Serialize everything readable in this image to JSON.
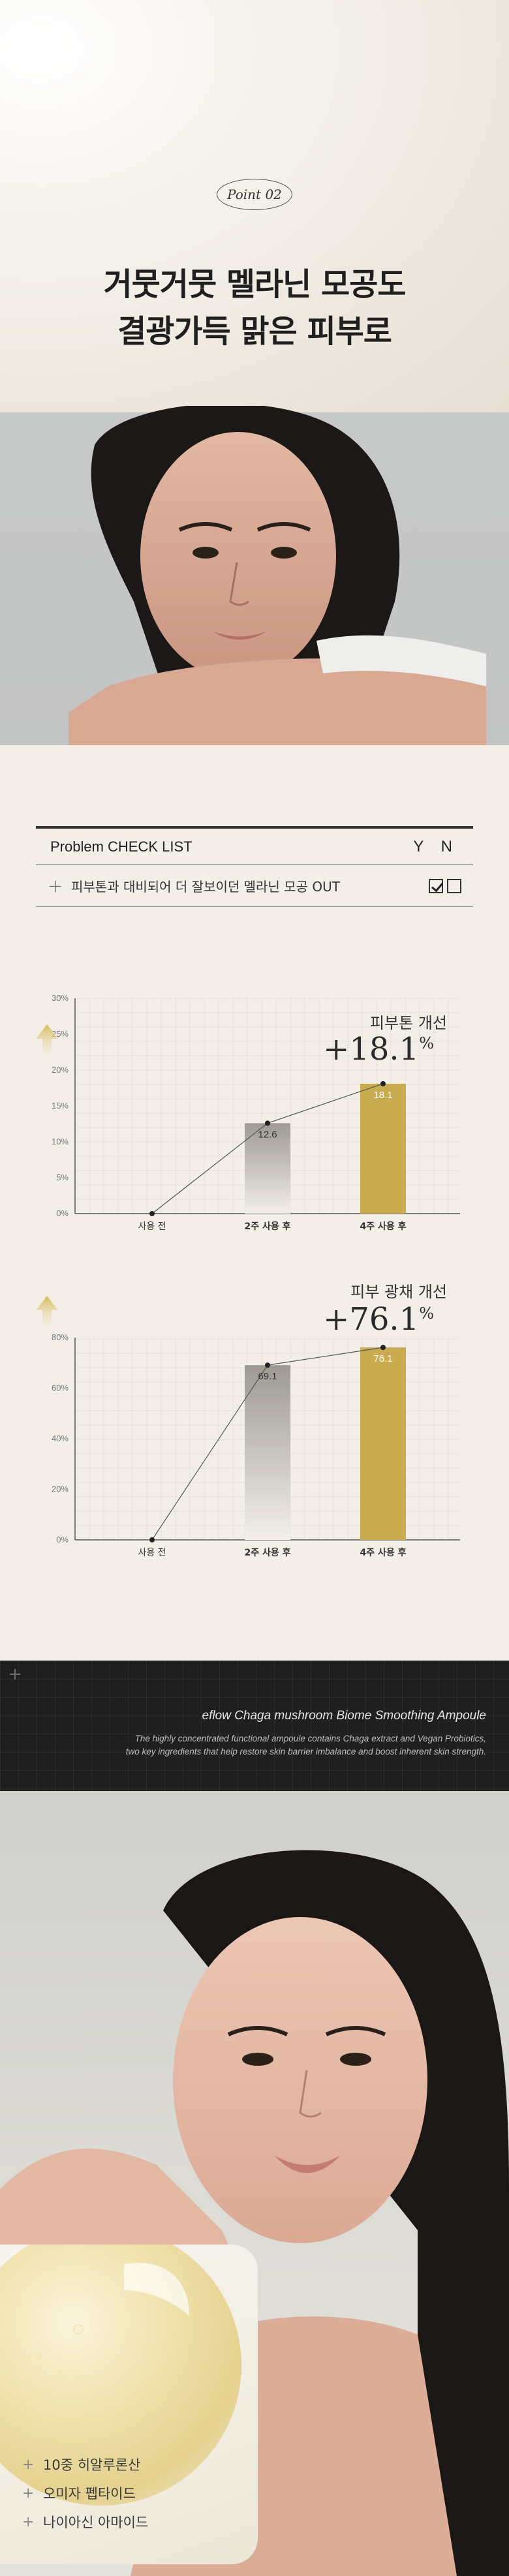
{
  "hero": {
    "badge": "Point 02",
    "title_line1": "거뭇거뭇 멜라닌 모공도",
    "title_line2": "결광가득 맑은 피부로"
  },
  "checklist": {
    "title": "Problem CHECK LIST",
    "yn": "Y N",
    "rows": [
      {
        "text": "피부톤과 대비되어 더 잘보이던 멜라닌 모공 OUT",
        "y_checked": true,
        "n_checked": false
      }
    ]
  },
  "charts": [
    {
      "label": "피부톤 개선",
      "pct": "+18.1",
      "pct_unit": "%",
      "chart_data": {
        "type": "bar",
        "categories": [
          "사용 전",
          "2주 사용 후",
          "4주 사용 후"
        ],
        "values": [
          0,
          12.6,
          18.1
        ],
        "value_labels": [
          "",
          "12.6",
          "18.1"
        ],
        "yticks": [
          "0%",
          "5%",
          "10%",
          "15%",
          "20%",
          "25%",
          "30%"
        ],
        "ylim": [
          0,
          30
        ],
        "grid": true
      }
    },
    {
      "label": "피부 광채 개선",
      "pct": "+76.1",
      "pct_unit": "%",
      "chart_data": {
        "type": "bar",
        "categories": [
          "사용 전",
          "2주 사용 후",
          "4주 사용 후"
        ],
        "values": [
          0,
          69.1,
          76.1
        ],
        "value_labels": [
          "",
          "69.1",
          "76.1"
        ],
        "yticks": [
          "0%",
          "20%",
          "40%",
          "60%",
          "80%"
        ],
        "ylim": [
          0,
          80
        ],
        "grid": true
      }
    }
  ],
  "product": {
    "title": "eflow Chaga mushroom Biome Smoothing Ampoule",
    "desc_line1": "The highly concentrated functional ampoule contains Chaga extract and Vegan Probiotics,",
    "desc_line2": "two key ingredients that help restore skin barrier imbalance and boost inherent skin strength."
  },
  "ingredients": [
    {
      "plus": "+",
      "name": "10중 히알루론산"
    },
    {
      "plus": "+",
      "name": "오미자 펩타이드"
    },
    {
      "plus": "+",
      "name": "나이아신 아마이드"
    }
  ],
  "colors": {
    "gold_bar": "#c9ac4f",
    "grey_bar_top": "#9e9a93",
    "grid": "#e7e1d6",
    "band_bg": "#1f1f1f"
  }
}
